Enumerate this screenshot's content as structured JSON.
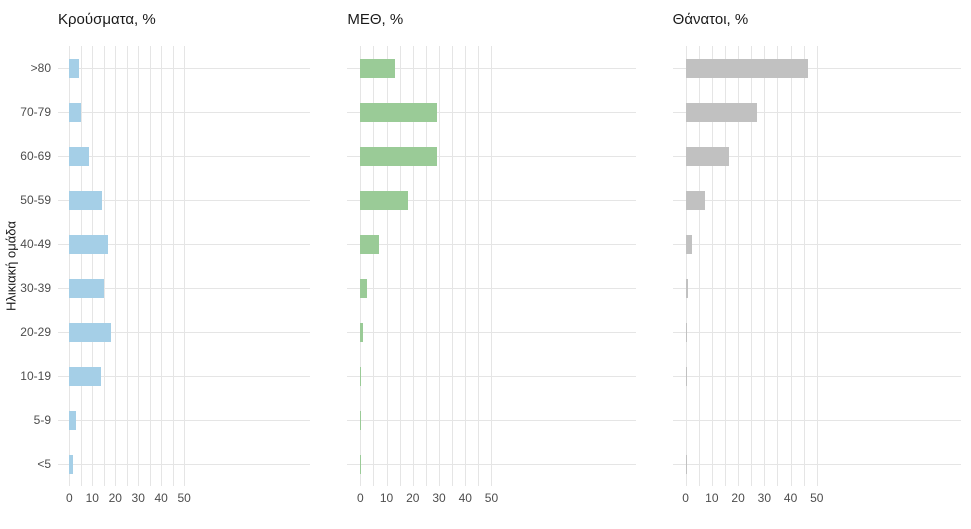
{
  "figure": {
    "y_axis_title": "Ηλικιακή ομάδα"
  },
  "chart_data": {
    "type": "bar",
    "orientation": "horizontal",
    "title": "",
    "xlabel": "",
    "ylabel": "Ηλικιακή ομάδα",
    "categories": [
      ">80",
      "70-79",
      "60-69",
      "50-59",
      "40-49",
      "30-39",
      "20-29",
      "10-19",
      "5-9",
      "<5"
    ],
    "series": [
      {
        "name": "Κρούσματα, %",
        "color": "#a5cfe7",
        "values": [
          4.0,
          5.0,
          8.7,
          14.2,
          17.0,
          15.3,
          18.0,
          14.0,
          2.9,
          1.8
        ]
      },
      {
        "name": "ΜΕΘ, %",
        "color": "#9acb97",
        "values": [
          13.2,
          29.1,
          29.3,
          18.0,
          7.2,
          2.5,
          1.0,
          0.3,
          0.2,
          0.3
        ]
      },
      {
        "name": "Θάνατοι, %",
        "color": "#c1c1c1",
        "values": [
          46.8,
          27.1,
          16.6,
          7.4,
          2.3,
          0.9,
          0.15,
          0.15,
          0,
          0.1
        ]
      }
    ],
    "xlim": [
      0,
      50
    ],
    "x_ticks": [
      0,
      10,
      20,
      30,
      40,
      50
    ],
    "x_minor_step": 5,
    "grid": "major-and-minor-vertical-plus-category-horizontal",
    "gridline_color": "#e5e5e5",
    "background": "#ffffff",
    "legend": "none",
    "layout": "three-facet-panels, shared y categories shown only on first panel"
  }
}
